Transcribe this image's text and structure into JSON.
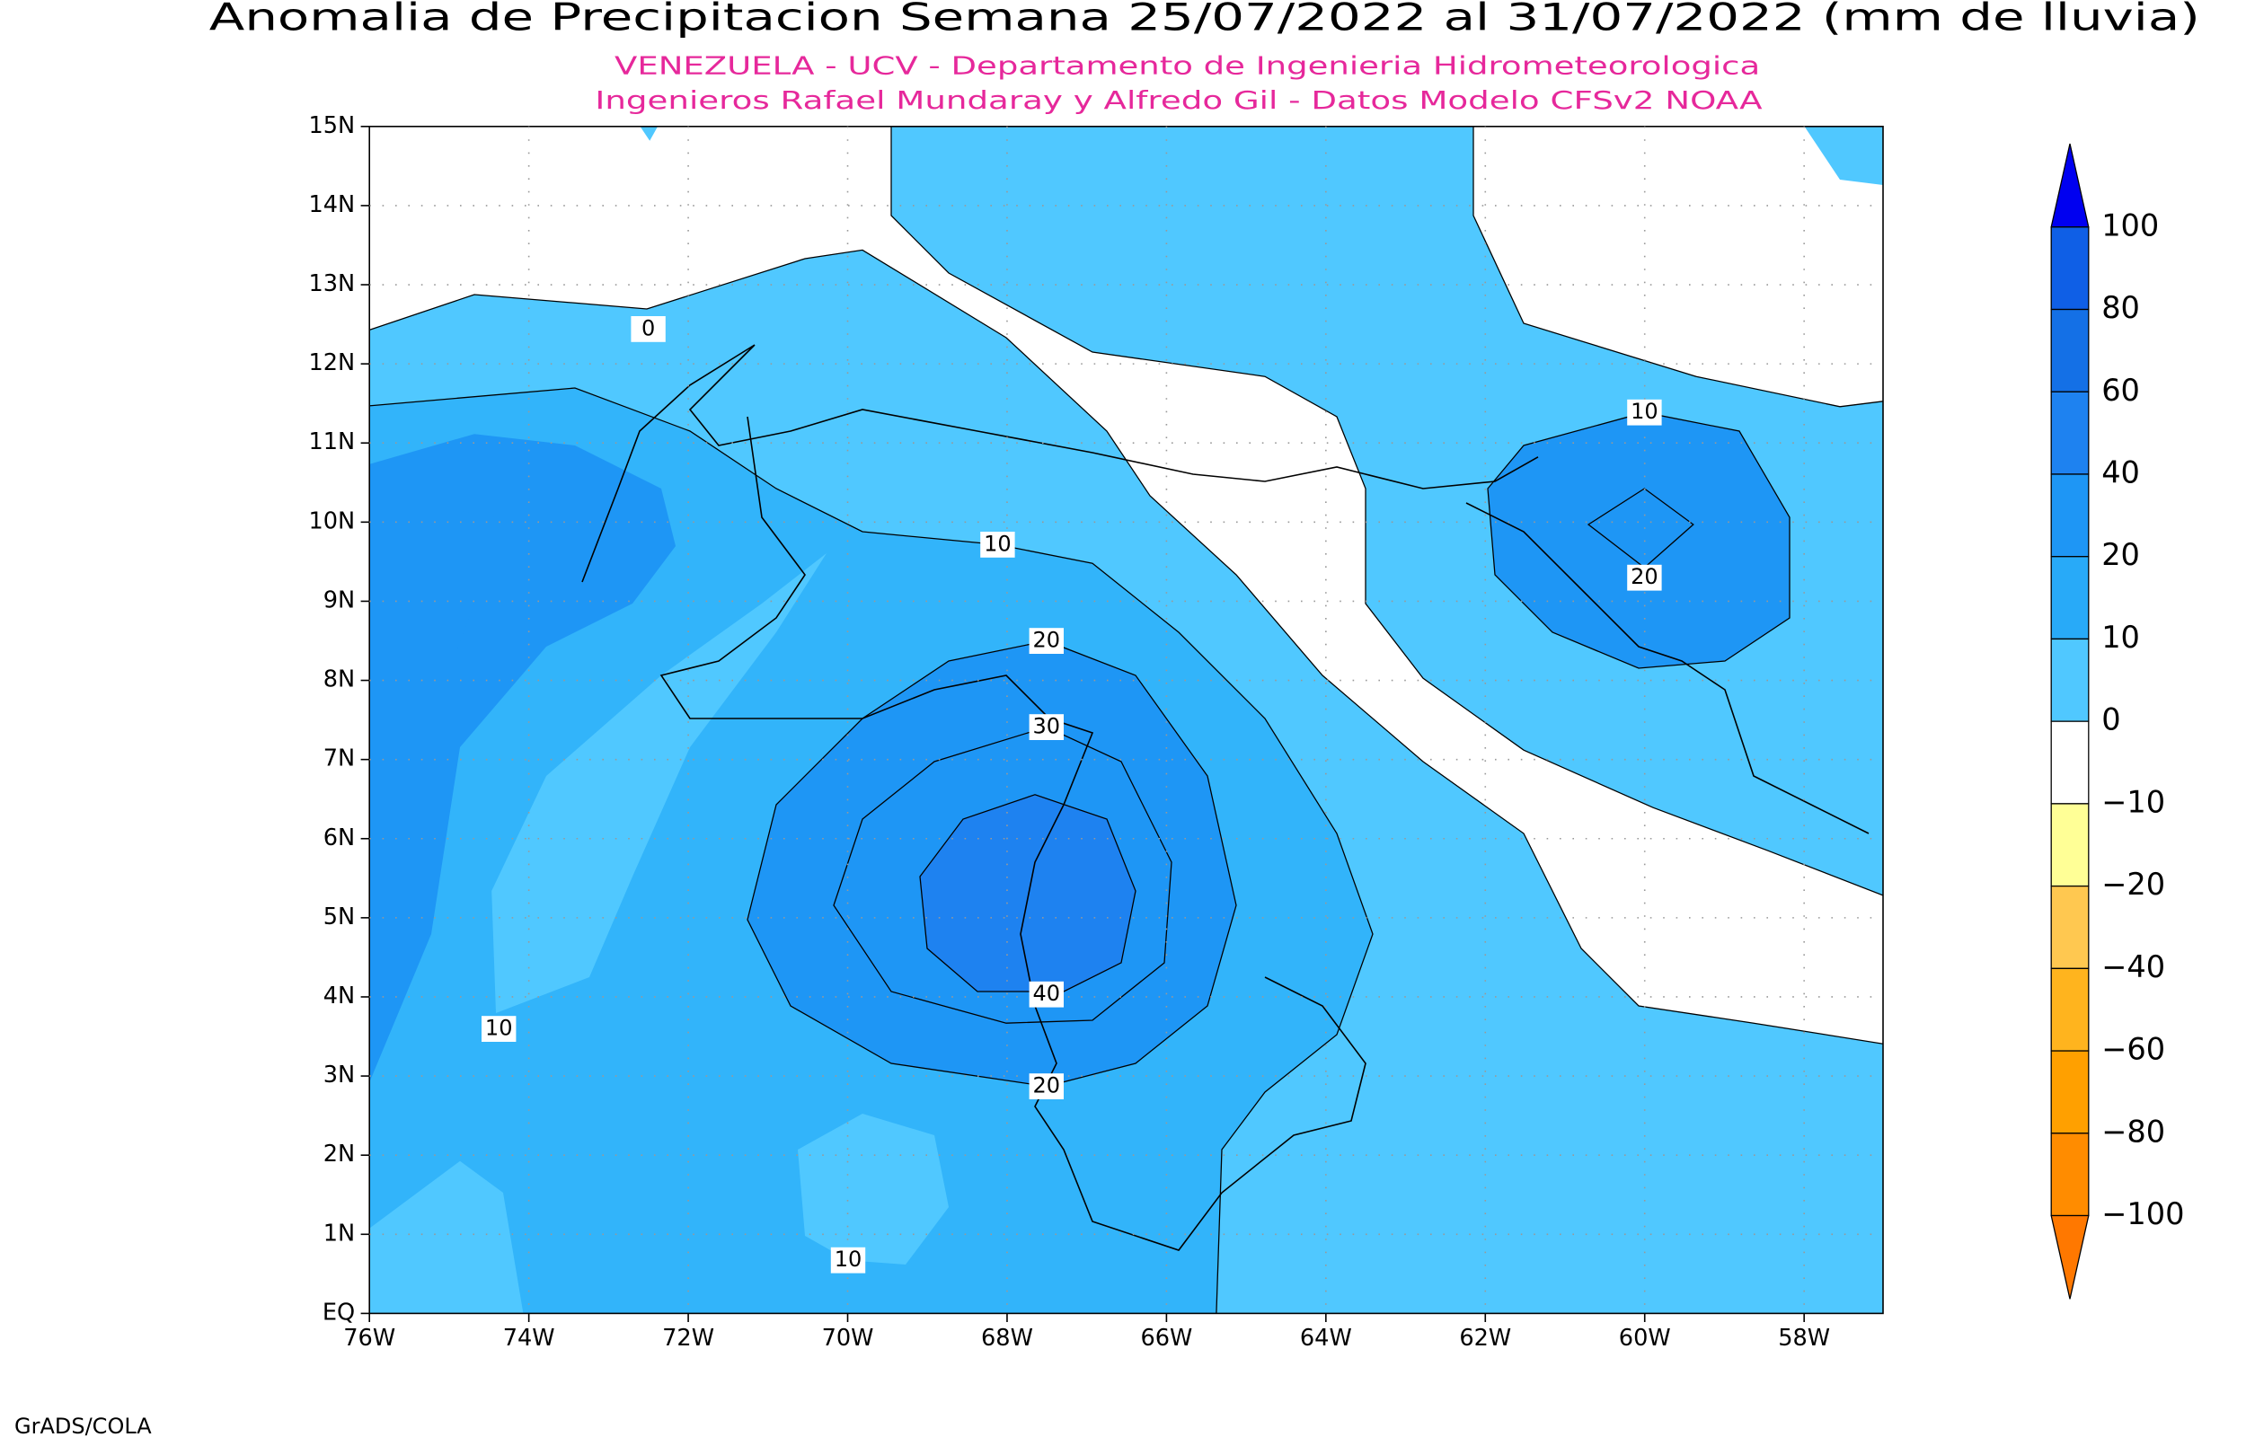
{
  "header": {
    "title": "Anomalia de Precipitacion Semana 25/07/2022 al 31/07/2022 (mm de lluvia)",
    "subtitle_lines": [
      "VENEZUELA - UCV - Departamento de Ingenieria Hidrometeorologica",
      "Ingenieros Rafael Mundaray y Alfredo Gil - Datos Modelo CFSv2 NOAA"
    ]
  },
  "map": {
    "lat_labels": [
      "15N",
      "14N",
      "13N",
      "12N",
      "11N",
      "10N",
      "9N",
      "8N",
      "7N",
      "6N",
      "5N",
      "4N",
      "3N",
      "2N",
      "1N",
      "EQ"
    ],
    "lon_labels": [
      "76W",
      "74W",
      "72W",
      "70W",
      "68W",
      "66W",
      "64W",
      "62W",
      "60W",
      "58W"
    ],
    "contour_labels": [
      "0",
      "10",
      "20",
      "10",
      "20",
      "30",
      "40",
      "20",
      "10",
      "10"
    ]
  },
  "colorbar": {
    "labels": [
      "100",
      "80",
      "60",
      "40",
      "20",
      "10",
      "0",
      "−10",
      "−20",
      "−40",
      "−60",
      "−80",
      "−100"
    ],
    "colors": [
      "#0000f0",
      "#0f5fe6",
      "#1470e6",
      "#1e82f0",
      "#1e96f5",
      "#28aaf8",
      "#50c8ff",
      "#ffffff",
      "#ffff96",
      "#ffc850",
      "#ffb41e",
      "#ffa000",
      "#ff8c00",
      "#ff7800"
    ]
  },
  "footer": "GrADS/COLA"
}
